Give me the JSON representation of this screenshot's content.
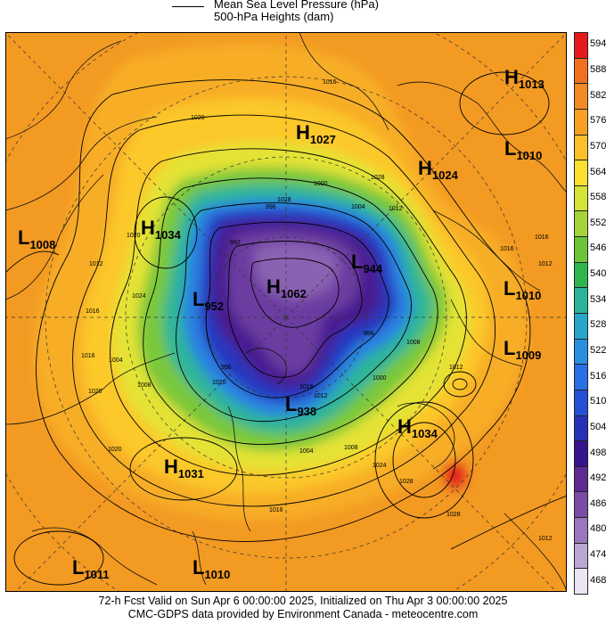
{
  "legend": {
    "line_label": "Mean Sea Level Pressure (hPa)",
    "fill_label": "500-hPa Heights (dam)"
  },
  "footer": {
    "line1": "72-h Fcst Valid on Sun Apr  6 00:00:00 2025, Initialized on Thu Apr  3 00:00:00 2025",
    "line2": "CMC-GDPS data provided by Environment Canada - meteocentre.com"
  },
  "colorbar": {
    "ticks": [
      "594",
      "588",
      "582",
      "576",
      "570",
      "564",
      "558",
      "552",
      "546",
      "540",
      "534",
      "528",
      "522",
      "516",
      "510",
      "504",
      "498",
      "492",
      "486",
      "480",
      "474",
      "468"
    ],
    "colors": [
      "#e61a1a",
      "#f07020",
      "#f38a25",
      "#f7a024",
      "#fcc12a",
      "#fbe030",
      "#d4e336",
      "#a6d33c",
      "#6dc43a",
      "#2fb54e",
      "#2bb39a",
      "#27a6c9",
      "#2b8fe0",
      "#2a6fe6",
      "#264fd8",
      "#2730b8",
      "#35148c",
      "#5e2b93",
      "#7a4ca6",
      "#9a76bd",
      "#bba6d4",
      "#ebe4f2"
    ]
  },
  "centers": [
    {
      "type": "H",
      "value": "1013"
    },
    {
      "type": "H",
      "value": "1027"
    },
    {
      "type": "L",
      "value": "1010"
    },
    {
      "type": "H",
      "value": "1024"
    },
    {
      "type": "L",
      "value": "1008"
    },
    {
      "type": "H",
      "value": "1034"
    },
    {
      "type": "L",
      "value": "944"
    },
    {
      "type": "L",
      "value": "952"
    },
    {
      "type": "H",
      "value": "1062"
    },
    {
      "type": "L",
      "value": "1010"
    },
    {
      "type": "L",
      "value": "1009"
    },
    {
      "type": "L",
      "value": "938"
    },
    {
      "type": "H",
      "value": "1034"
    },
    {
      "type": "H",
      "value": "1031"
    },
    {
      "type": "L",
      "value": "1011"
    },
    {
      "type": "L",
      "value": "1010"
    }
  ],
  "isobar_labels": [
    "1016",
    "1020",
    "1020",
    "1012",
    "1016",
    "1016",
    "1020",
    "1024",
    "1028",
    "1028",
    "1004",
    "1000",
    "996",
    "992",
    "1012",
    "1004",
    "1008",
    "1020",
    "1016",
    "1024",
    "1028",
    "1012",
    "1016",
    "1012",
    "1004",
    "996",
    "988",
    "1000",
    "1008",
    "1016",
    "1012",
    "1020",
    "1012",
    "1016",
    "1008",
    "1028"
  ]
}
